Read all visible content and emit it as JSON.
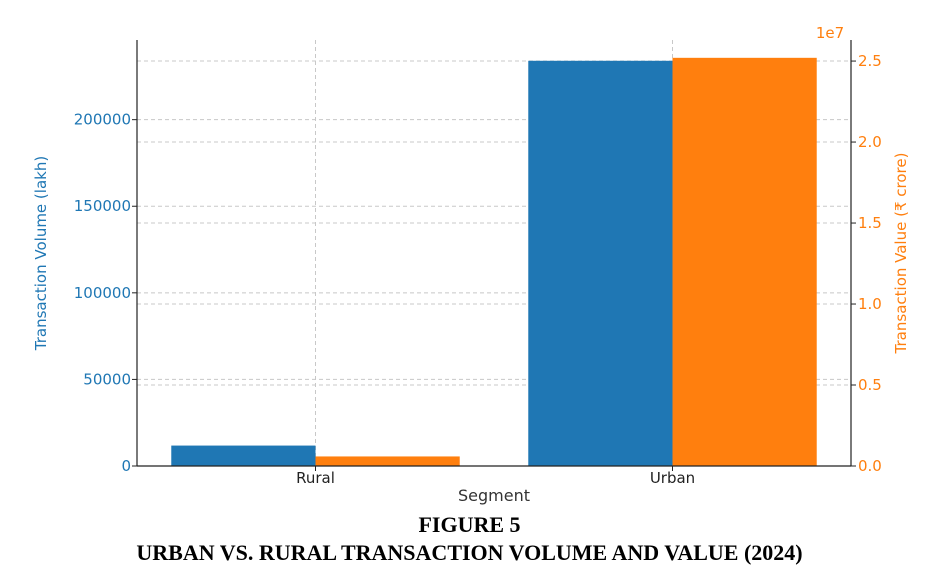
{
  "chart_data": {
    "type": "bar",
    "title": "",
    "xlabel": "Segment",
    "categories": [
      "Rural",
      "Urban"
    ],
    "y_left": {
      "label": "Transaction Volume (lakh)",
      "ylim": [
        0,
        246000
      ],
      "ticks": [
        0,
        50000,
        100000,
        150000,
        200000
      ],
      "tick_labels": [
        "0",
        "50000",
        "100000",
        "150000",
        "200000"
      ],
      "color": "#1f77b4"
    },
    "y_right": {
      "label": "Transaction Value (₹ crore)",
      "offset_text": "1e7",
      "ylim": [
        0,
        2.63
      ],
      "ticks": [
        0.0,
        0.5,
        1.0,
        1.5,
        2.0,
        2.5
      ],
      "tick_labels": [
        "0.0",
        "0.5",
        "1.0",
        "1.5",
        "2.0",
        "2.5"
      ],
      "color": "#ff7f0e"
    },
    "series": [
      {
        "axis": "left",
        "color": "#1f77b4",
        "values": [
          11800,
          234000
        ]
      },
      {
        "axis": "right",
        "color": "#ff7f0e",
        "values": [
          0.059,
          2.52
        ]
      }
    ],
    "grid": true,
    "legend": "none"
  },
  "caption": {
    "figure_number": "FIGURE 5",
    "figure_title": "URBAN VS. RURAL TRANSACTION VOLUME AND VALUE (2024)"
  }
}
